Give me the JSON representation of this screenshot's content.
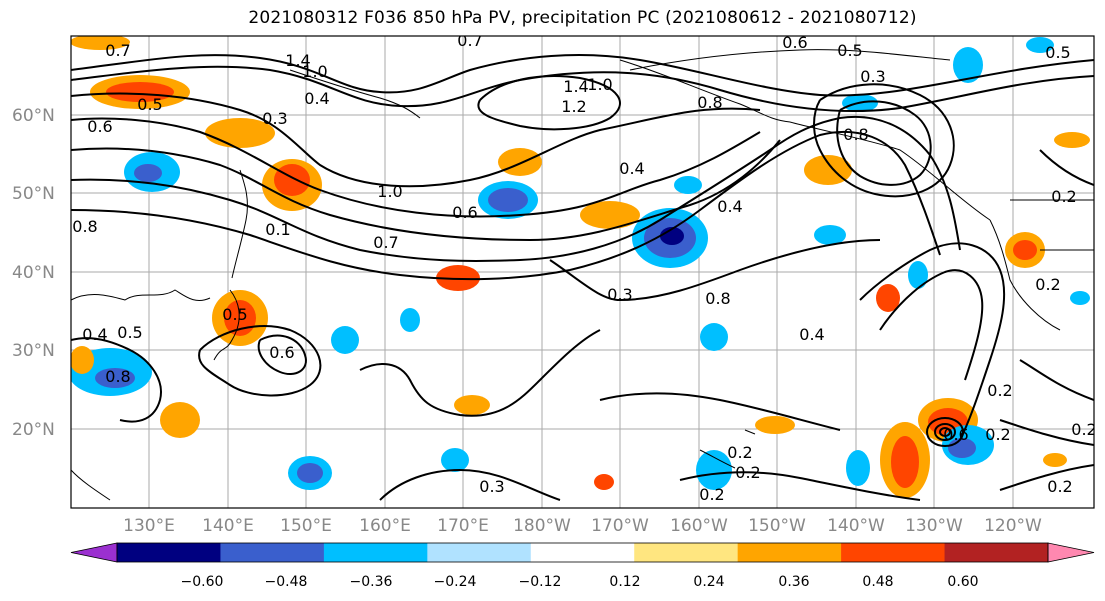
{
  "title": "2021080312 F036 850 hPa PV, precipitation PC (2021080612 - 2021080712)",
  "lat_labels": [
    "60°N",
    "50°N",
    "40°N",
    "30°N",
    "20°N"
  ],
  "lon_labels": [
    "130°E",
    "140°E",
    "150°E",
    "160°E",
    "170°E",
    "180°W",
    "170°W",
    "160°W",
    "150°W",
    "140°W",
    "130°W",
    "120°W"
  ],
  "colorbar": {
    "ticks": [
      "−0.60",
      "−0.48",
      "−0.36",
      "−0.24",
      "−0.12",
      "0.12",
      "0.24",
      "0.36",
      "0.48",
      "0.60"
    ],
    "colors": [
      "#9b30d0",
      "#000080",
      "#3a5fcd",
      "#00bfff",
      "#b0e2ff",
      "#ffffff",
      "#ffe680",
      "#ffa500",
      "#ff4500",
      "#b22222",
      "#ff88b0"
    ]
  },
  "pv_contour_labels": [
    "0.7",
    "1.4",
    "1.0",
    "0.4",
    "0.7",
    "0.6",
    "0.5",
    "0.3",
    "0.6",
    "0.5",
    "0.3",
    "0.5",
    "1.2",
    "1.4",
    "1.0",
    "0.4",
    "0.4",
    "0.8",
    "1.0",
    "0.6",
    "0.7",
    "0.8",
    "0.8",
    "0.1",
    "0.8",
    "0.3",
    "0.4",
    "0.5",
    "0.6",
    "0.4",
    "0.5",
    "0.8",
    "0.2",
    "0.2",
    "0.3",
    "0.2",
    "0.2",
    "0.2",
    "0.2",
    "0.2",
    "0.2",
    "0.6",
    "0.2"
  ],
  "icons": {
    "colorbar_left_extend": "triangle-left",
    "colorbar_right_extend": "triangle-right"
  }
}
